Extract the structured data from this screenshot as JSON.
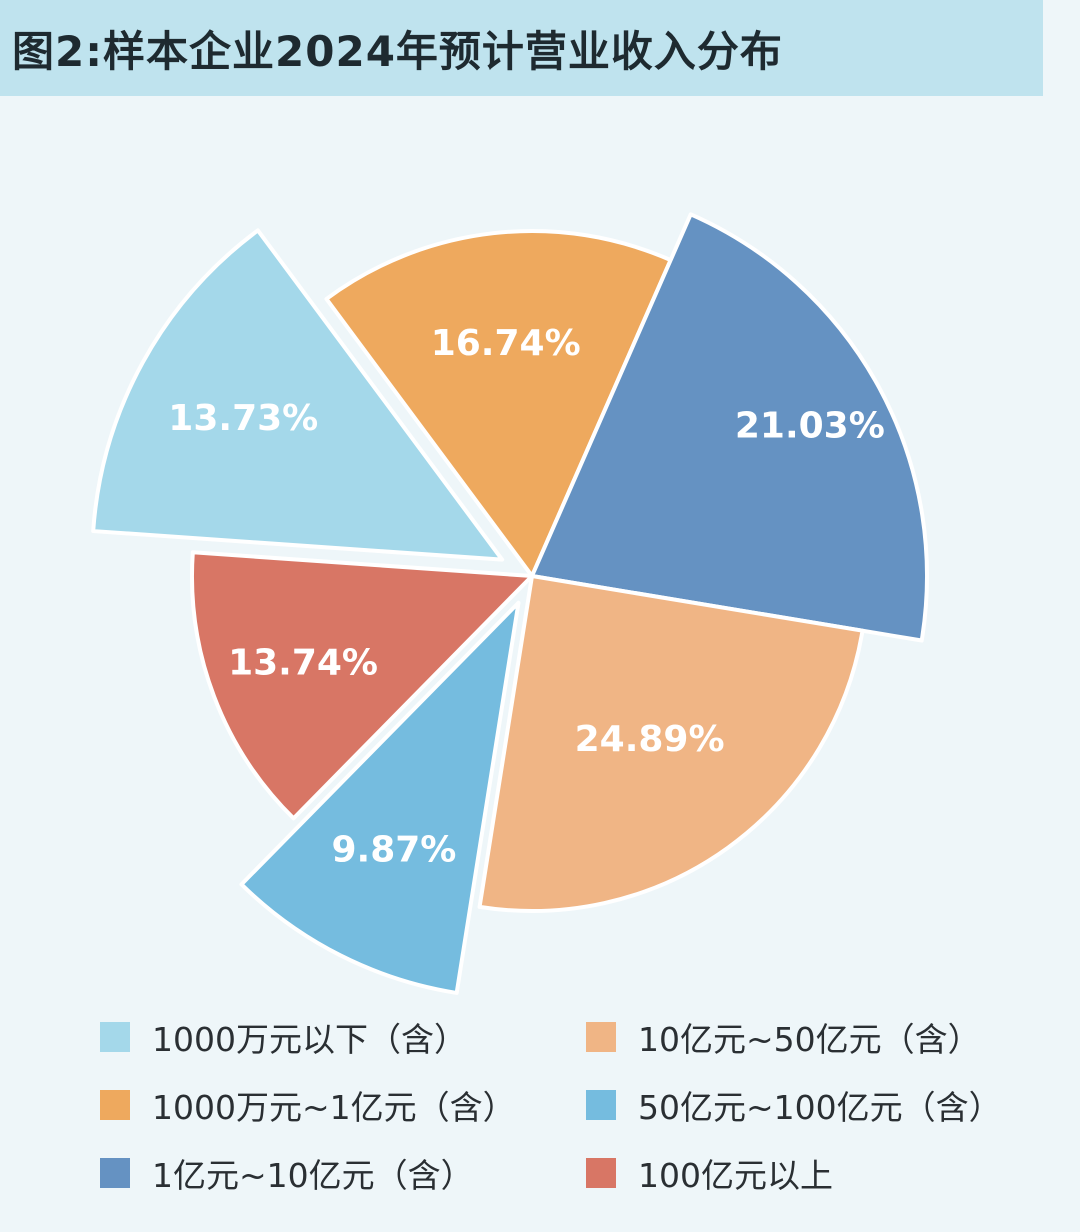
{
  "title": "图2:样本企业2024年预计营业收入分布",
  "chart_data": {
    "type": "pie",
    "title": "图2:样本企业2024年预计营业收入分布",
    "unit": "%",
    "series": [
      {
        "name": "1000万元以下（含）",
        "value": 13.73,
        "label": "13.73%",
        "color": "#a4d8ea"
      },
      {
        "name": "1000万元~1亿元（含）",
        "value": 16.74,
        "label": "16.74%",
        "color": "#eea95e"
      },
      {
        "name": "1亿元~10亿元（含）",
        "value": 21.03,
        "label": "21.03%",
        "color": "#6592c2"
      },
      {
        "name": "10亿元~50亿元（含）",
        "value": 24.89,
        "label": "24.89%",
        "color": "#f0b585"
      },
      {
        "name": "50亿元~100亿元（含）",
        "value": 9.87,
        "label": "9.87%",
        "color": "#75bcdf"
      },
      {
        "name": "100亿元以上",
        "value": 13.74,
        "label": "13.74%",
        "color": "#d87665"
      }
    ],
    "legend_position": "bottom",
    "legend_order": [
      0,
      3,
      1,
      4,
      2,
      5
    ]
  }
}
